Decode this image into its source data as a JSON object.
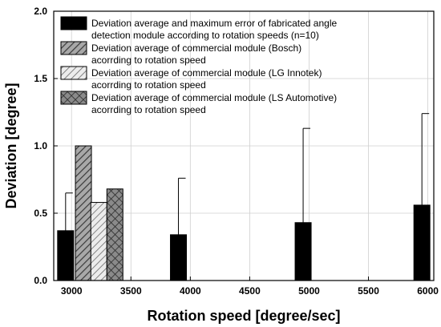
{
  "chart_data": {
    "type": "bar",
    "xlabel": "Rotation speed [degree/sec]",
    "ylabel": "Deviation [degree]",
    "xlim": [
      2850,
      6050
    ],
    "ylim": [
      0,
      2.0
    ],
    "x_ticks": [
      3000,
      3500,
      4000,
      4500,
      5000,
      5500,
      6000
    ],
    "y_ticks": [
      0.0,
      0.5,
      1.0,
      1.5,
      2.0
    ],
    "y_tick_labels": [
      "0.0",
      "0.5",
      "1.0",
      "1.5",
      "2.0"
    ],
    "grid": true,
    "legend_position": "top-left",
    "series": [
      {
        "name": "Deviation average and maximum error of fabricated angle detection module according to rotation speeds (n=10)",
        "legend_lines": [
          "Deviation average and maximum error of fabricated angle",
          "detection module according to rotation speeds (n=10)"
        ],
        "fill": "black",
        "x": [
          2950,
          3900,
          4950,
          5950
        ],
        "values": [
          0.37,
          0.34,
          0.43,
          0.56
        ],
        "error_max": [
          0.65,
          0.76,
          1.13,
          1.24
        ]
      },
      {
        "name": "Deviation average of commercial module (Bosch) acorrding to rotation speed",
        "legend_lines": [
          "Deviation average of commercial module (Bosch)",
          "acorrding to rotation speed"
        ],
        "fill": "diag-dense",
        "x": [
          3100
        ],
        "values": [
          1.0
        ]
      },
      {
        "name": "Deviation average of commercial module (LG Innotek) acorrding to rotation speed",
        "legend_lines": [
          "Deviation average of commercial module (LG Innotek)",
          "acorrding to rotation speed"
        ],
        "fill": "diag-light",
        "x": [
          3230
        ],
        "values": [
          0.58
        ]
      },
      {
        "name": "Deviation average of commercial module (LS Automotive) acorrding to rotation speed",
        "legend_lines": [
          "Deviation average of commercial module (LS Automotive)",
          "acorrding to rotation speed"
        ],
        "fill": "crosshatch",
        "x": [
          3365
        ],
        "values": [
          0.68
        ]
      }
    ]
  }
}
